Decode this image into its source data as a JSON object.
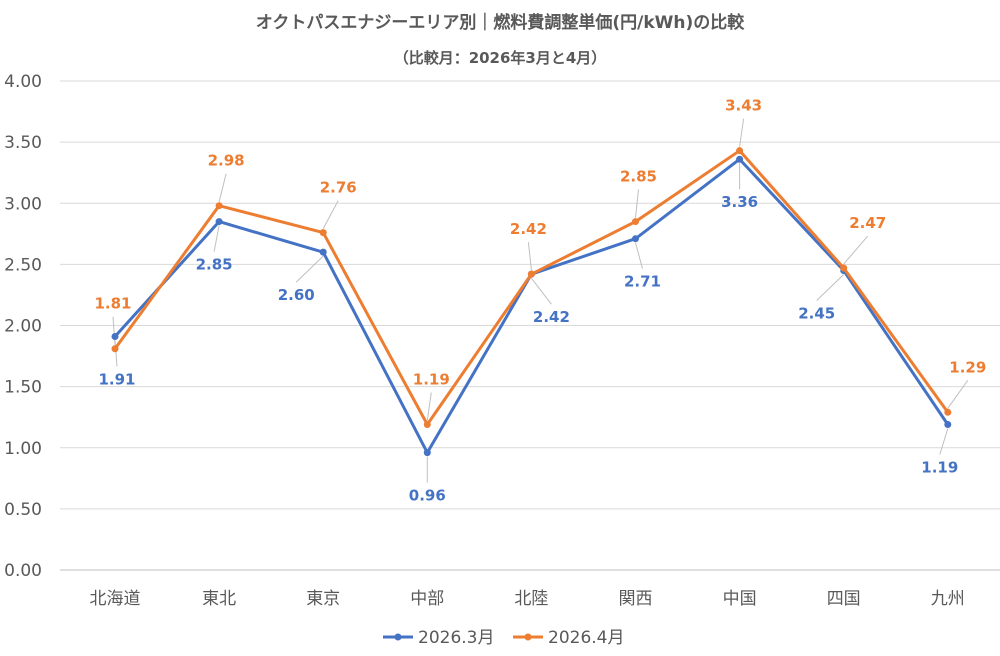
{
  "chart_data": {
    "type": "line",
    "title": "オクトパスエナジーエリア別｜燃料費調整単価(円/kWh)の比較",
    "subtitle": "（比較月：2026年3月と4月）",
    "categories": [
      "北海道",
      "東北",
      "東京",
      "中部",
      "北陸",
      "関西",
      "中国",
      "四国",
      "九州"
    ],
    "ylim": [
      0,
      4
    ],
    "yticks": [
      "0.00",
      "0.50",
      "1.00",
      "1.50",
      "2.00",
      "2.50",
      "3.00",
      "3.50",
      "4.00"
    ],
    "grid": true,
    "legend_position": "bottom",
    "series": [
      {
        "name": "2026.3月",
        "color": "#4472C4",
        "values": [
          1.91,
          2.85,
          2.6,
          0.96,
          2.42,
          2.71,
          3.36,
          2.45,
          1.19
        ],
        "labels": [
          "1.91",
          "2.85",
          "2.60",
          "0.96",
          "2.42",
          "2.71",
          "3.36",
          "2.45",
          "1.19"
        ]
      },
      {
        "name": "2026.4月",
        "color": "#ED7D31",
        "values": [
          1.81,
          2.98,
          2.76,
          1.19,
          2.42,
          2.85,
          3.43,
          2.47,
          1.29
        ],
        "labels": [
          "1.81",
          "2.98",
          "2.76",
          "1.19",
          "2.42",
          "2.85",
          "3.43",
          "2.47",
          "1.29"
        ]
      }
    ]
  }
}
